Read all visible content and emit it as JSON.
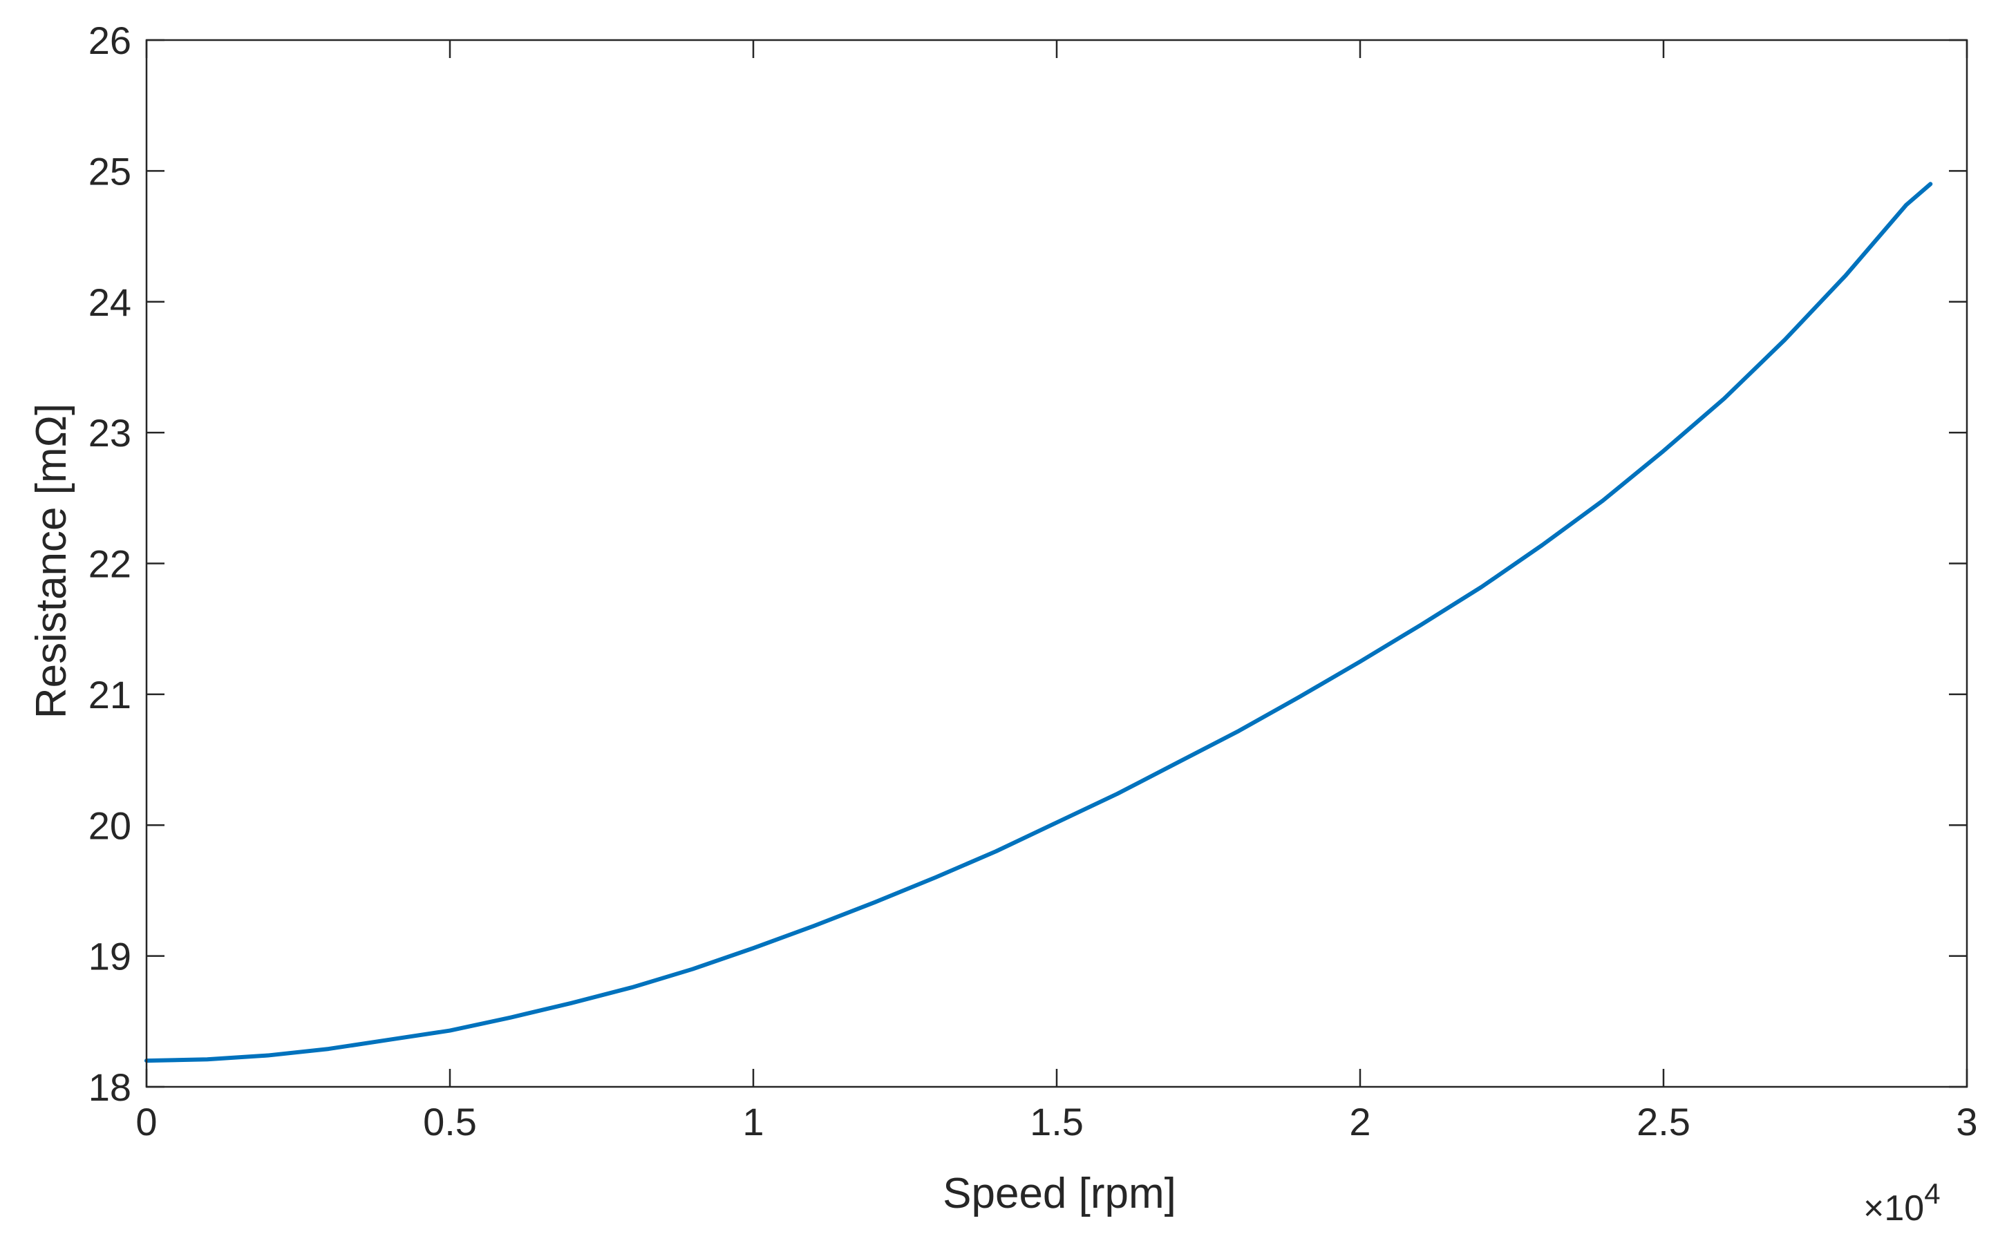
{
  "chart_data": {
    "type": "line",
    "title": "",
    "xlabel": "Speed [rpm]",
    "ylabel": "Resistance [mΩ]",
    "x_exponent_label": "×10",
    "x_exponent_power": "4",
    "xlim": [
      0,
      30000
    ],
    "ylim": [
      18,
      26
    ],
    "x_ticks": [
      0,
      5000,
      10000,
      15000,
      20000,
      25000,
      30000
    ],
    "x_tick_labels": [
      "0",
      "0.5",
      "1",
      "1.5",
      "2",
      "2.5",
      "3"
    ],
    "y_ticks": [
      18,
      19,
      20,
      21,
      22,
      23,
      24,
      25,
      26
    ],
    "y_tick_labels": [
      "18",
      "19",
      "20",
      "21",
      "22",
      "23",
      "24",
      "25",
      "26"
    ],
    "grid": false,
    "box": true,
    "series": [
      {
        "color": "#0072BD",
        "x": [
          0,
          1000,
          2000,
          3000,
          4000,
          5000,
          6000,
          7000,
          8000,
          9000,
          10000,
          11000,
          12000,
          13000,
          14000,
          15000,
          16000,
          17000,
          18000,
          19000,
          20000,
          21000,
          22000,
          23000,
          24000,
          25000,
          26000,
          27000,
          28000,
          29000,
          29400
        ],
        "y": [
          18.2,
          18.21,
          18.24,
          18.29,
          18.36,
          18.43,
          18.53,
          18.64,
          18.76,
          18.9,
          19.06,
          19.23,
          19.41,
          19.6,
          19.8,
          20.02,
          20.24,
          20.48,
          20.72,
          20.98,
          21.25,
          21.53,
          21.82,
          22.14,
          22.48,
          22.86,
          23.26,
          23.71,
          24.2,
          24.74,
          24.9
        ]
      }
    ]
  }
}
